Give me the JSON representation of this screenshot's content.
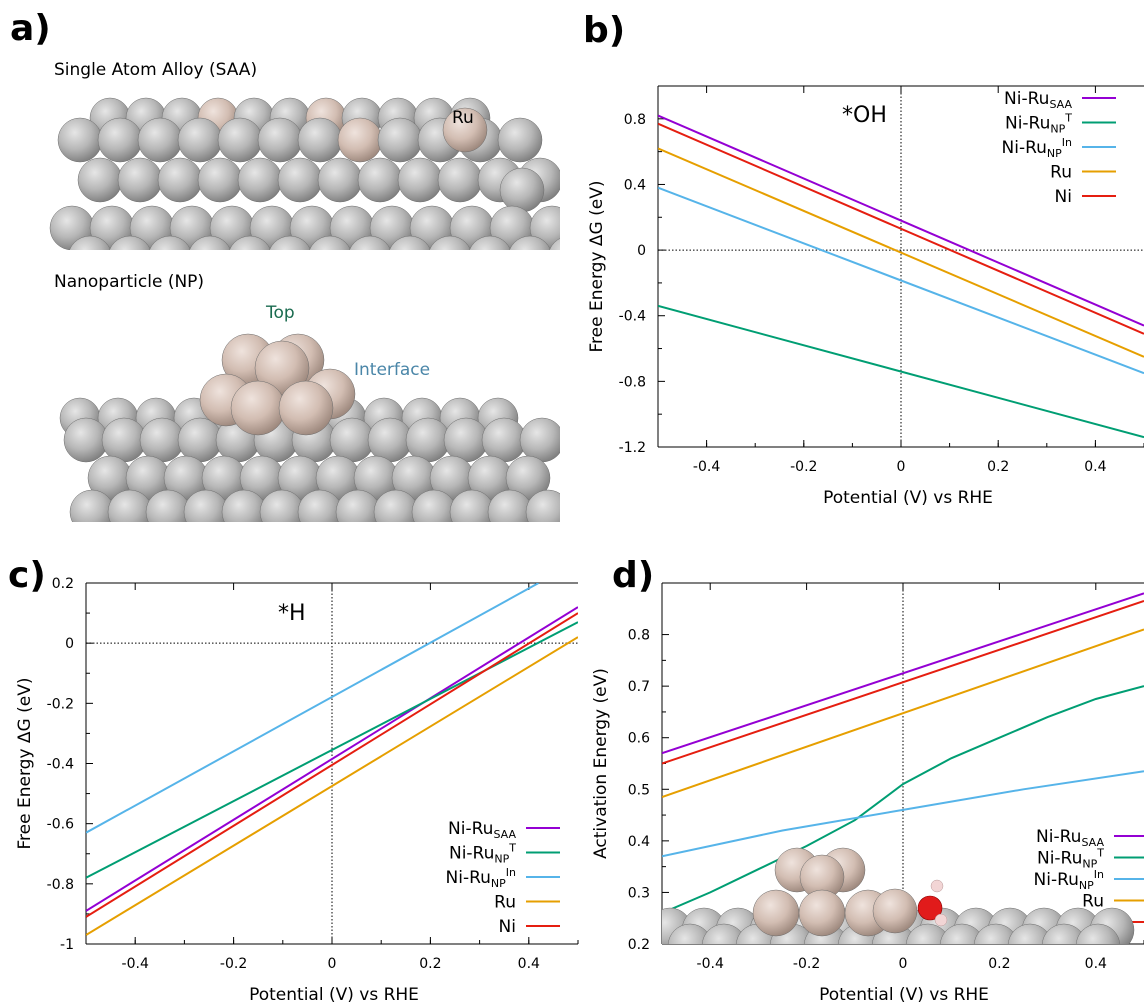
{
  "panels": {
    "a": {
      "letter": "a)",
      "saa_caption": "Single Atom Alloy (SAA)",
      "np_caption": "Nanoparticle (NP)",
      "ru_label": "Ru",
      "top_label": "Top",
      "interface_label": "Interface"
    },
    "b": {
      "letter": "b)"
    },
    "c": {
      "letter": "c)"
    },
    "d": {
      "letter": "d)"
    }
  },
  "colors": {
    "Ni-Ru_SAA": "#9400d3",
    "Ni-Ru_NP_T": "#009e73",
    "Ni-Ru_NP_In": "#56b4e9",
    "Ru": "#e69f00",
    "Ni": "#e51e10",
    "ni_atom": "#b9b9b9",
    "ru_atom": "#d7c4bb",
    "top_label": "#1a6b4f",
    "interface_label": "#4a86a8"
  },
  "legend_entries": [
    {
      "key": "Ni-Ru_SAA",
      "base": "Ni-Ru",
      "sub": "SAA",
      "sup": ""
    },
    {
      "key": "Ni-Ru_NP_T",
      "base": "Ni-Ru",
      "sub": "NP",
      "sup": "T"
    },
    {
      "key": "Ni-Ru_NP_In",
      "base": "Ni-Ru",
      "sub": "NP",
      "sup": "In"
    },
    {
      "key": "Ru",
      "base": "Ru",
      "sub": "",
      "sup": ""
    },
    {
      "key": "Ni",
      "base": "Ni",
      "sub": "",
      "sup": ""
    }
  ],
  "chart_data": [
    {
      "panel": "b",
      "type": "line",
      "annotation": "*OH",
      "xlabel": "Potential (V) vs RHE",
      "ylabel": "Free Energy ΔG (eV)",
      "xlim": [
        -0.5,
        0.5
      ],
      "ylim": [
        -1.2,
        1.0
      ],
      "xticks": [
        -0.4,
        -0.2,
        0,
        0.2,
        0.4
      ],
      "xtick_labels": [
        "-0.4",
        "-0.2",
        "0",
        "0.2",
        "0.4"
      ],
      "yticks": [
        -1.2,
        -0.8,
        -0.4,
        0,
        0.4,
        0.8
      ],
      "ytick_labels": [
        "-1.2",
        "-0.8",
        "-0.4",
        "0",
        "0.4",
        "0.8"
      ],
      "legend_position": "top-right",
      "series": [
        {
          "key": "Ni-Ru_SAA",
          "x": [
            -0.5,
            0.5
          ],
          "y": [
            0.82,
            -0.46
          ]
        },
        {
          "key": "Ni-Ru_NP_T",
          "x": [
            -0.5,
            0.5
          ],
          "y": [
            -0.34,
            -1.14
          ]
        },
        {
          "key": "Ni-Ru_NP_In",
          "x": [
            -0.5,
            0.5
          ],
          "y": [
            0.38,
            -0.75
          ]
        },
        {
          "key": "Ru",
          "x": [
            -0.5,
            0.5
          ],
          "y": [
            0.62,
            -0.65
          ]
        },
        {
          "key": "Ni",
          "x": [
            -0.5,
            0.5
          ],
          "y": [
            0.77,
            -0.51
          ]
        }
      ]
    },
    {
      "panel": "c",
      "type": "line",
      "annotation": "*H",
      "xlabel": "Potential (V) vs RHE",
      "ylabel": "Free Energy ΔG (eV)",
      "xlim": [
        -0.5,
        0.5
      ],
      "ylim": [
        -1.0,
        0.2
      ],
      "xticks": [
        -0.4,
        -0.2,
        0,
        0.2,
        0.4
      ],
      "xtick_labels": [
        "-0.4",
        "-0.2",
        "0",
        "0.2",
        "0.4"
      ],
      "yticks": [
        -1.0,
        -0.8,
        -0.6,
        -0.4,
        -0.2,
        0,
        0.2
      ],
      "ytick_labels": [
        "-1",
        "-0.8",
        "-0.6",
        "-0.4",
        "-0.2",
        "0",
        "0.2"
      ],
      "legend_position": "bottom-right",
      "series": [
        {
          "key": "Ni-Ru_SAA",
          "x": [
            -0.5,
            0.5
          ],
          "y": [
            -0.89,
            0.12
          ]
        },
        {
          "key": "Ni-Ru_NP_T",
          "x": [
            -0.5,
            0.5
          ],
          "y": [
            -0.78,
            0.07
          ]
        },
        {
          "key": "Ni-Ru_NP_In",
          "x": [
            -0.5,
            0.42
          ],
          "y": [
            -0.63,
            0.2
          ]
        },
        {
          "key": "Ru",
          "x": [
            -0.5,
            0.5
          ],
          "y": [
            -0.97,
            0.02
          ]
        },
        {
          "key": "Ni",
          "x": [
            -0.5,
            0.5
          ],
          "y": [
            -0.91,
            0.1
          ]
        }
      ]
    },
    {
      "panel": "d",
      "type": "line",
      "xlabel": "Potential (V) vs RHE",
      "ylabel": "Activation Energy (eV)",
      "xlim": [
        -0.5,
        0.5
      ],
      "ylim": [
        0.2,
        0.9
      ],
      "xticks": [
        -0.4,
        -0.2,
        0,
        0.2,
        0.4
      ],
      "xtick_labels": [
        "-0.4",
        "-0.2",
        "0",
        "0.2",
        "0.4"
      ],
      "yticks": [
        0.2,
        0.3,
        0.4,
        0.5,
        0.6,
        0.7,
        0.8
      ],
      "ytick_labels": [
        "0.2",
        "0.3",
        "0.4",
        "0.5",
        "0.6",
        "0.7",
        "0.8"
      ],
      "legend_position": "bottom-right",
      "series": [
        {
          "key": "Ni-Ru_SAA",
          "x": [
            -0.5,
            0.5
          ],
          "y": [
            0.57,
            0.88
          ]
        },
        {
          "key": "Ni-Ru_NP_T",
          "x": [
            -0.5,
            -0.4,
            -0.3,
            -0.2,
            -0.1,
            0,
            0.1,
            0.2,
            0.3,
            0.4,
            0.5
          ],
          "y": [
            0.26,
            0.3,
            0.345,
            0.39,
            0.44,
            0.51,
            0.56,
            0.6,
            0.64,
            0.675,
            0.7
          ]
        },
        {
          "key": "Ni-Ru_NP_In",
          "x": [
            -0.5,
            -0.25,
            0,
            0.25,
            0.5
          ],
          "y": [
            0.37,
            0.42,
            0.46,
            0.5,
            0.535
          ]
        },
        {
          "key": "Ru",
          "x": [
            -0.5,
            0.5
          ],
          "y": [
            0.485,
            0.81
          ]
        },
        {
          "key": "Ni",
          "x": [
            -0.5,
            0.5
          ],
          "y": [
            0.55,
            0.865
          ]
        }
      ]
    }
  ]
}
